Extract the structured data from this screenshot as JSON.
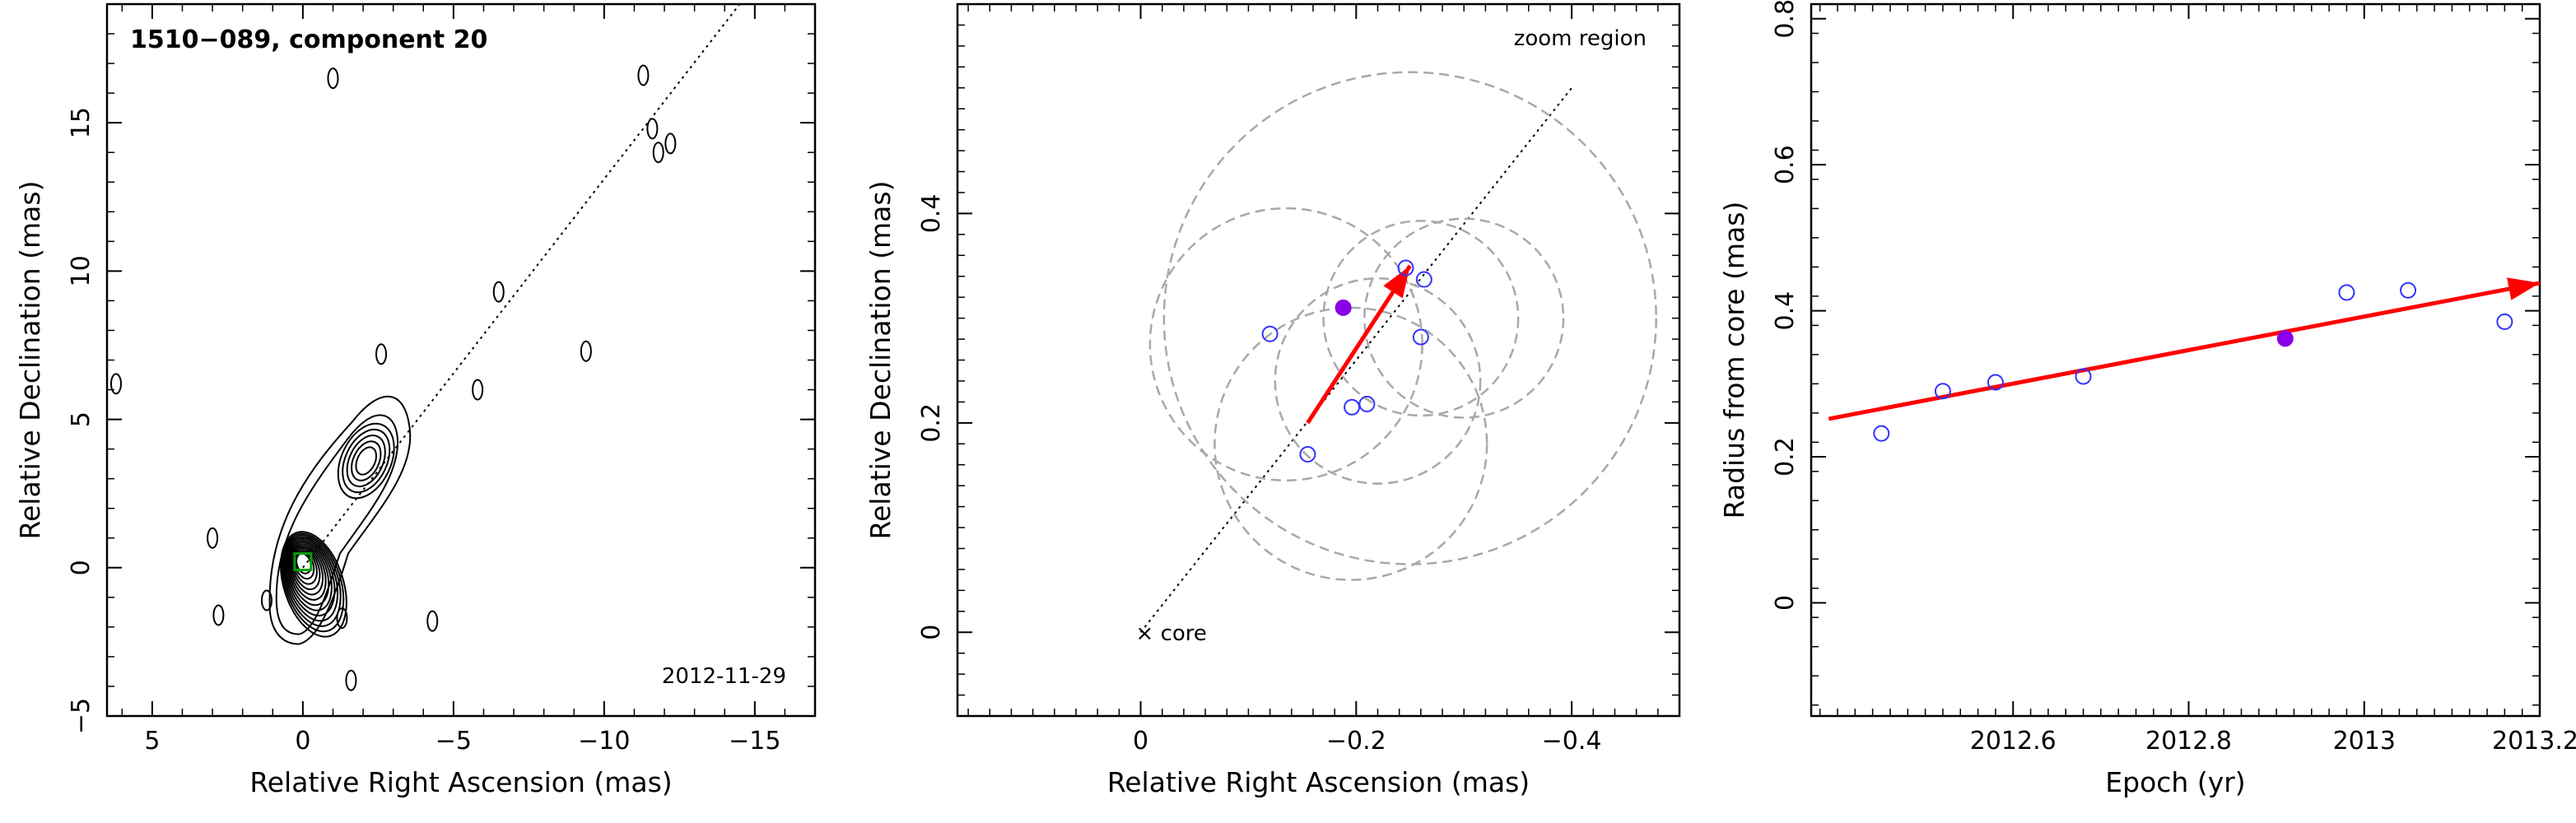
{
  "colors": {
    "contour": "#000000",
    "arrow": "#ff0000",
    "open_marker": "#3333ff",
    "filled_marker": "#8a00e6",
    "circle": "#a8a8a8",
    "core_box": "#00a000"
  },
  "chart_data": [
    {
      "type": "contour",
      "title": "1510−089, component 20",
      "date": "2012-11-29",
      "xlabel": "Relative Right Ascension (mas)",
      "ylabel": "Relative Declination (mas)",
      "xlim": [
        6.5,
        -17
      ],
      "ylim": [
        -5,
        19
      ],
      "xticks": [
        5,
        0,
        -5,
        -10,
        -15
      ],
      "xtick_labels": [
        "5",
        "0",
        "−5",
        "−10",
        "−15"
      ],
      "yticks": [
        -5,
        0,
        5,
        10,
        15
      ],
      "yticks_labels": [
        "−5",
        "0",
        "5",
        "10",
        "15"
      ],
      "direction_line": {
        "from": [
          0,
          0
        ],
        "to": [
          -14.5,
          19
        ]
      },
      "jet_core": {
        "ra": 0,
        "dec": 0.2,
        "peak_layers": 13
      },
      "jet_knot": {
        "ra": -2.1,
        "dec": 3.6,
        "layers": 5
      },
      "isolated_blobs": [
        {
          "ra": -11.3,
          "dec": 16.6
        },
        {
          "ra": -11.6,
          "dec": 14.8
        },
        {
          "ra": -12.2,
          "dec": 14.3
        },
        {
          "ra": -11.8,
          "dec": 14.0
        },
        {
          "ra": -6.5,
          "dec": 9.3
        },
        {
          "ra": -9.4,
          "dec": 7.3
        },
        {
          "ra": -2.6,
          "dec": 7.2
        },
        {
          "ra": 3.0,
          "dec": 1.0
        },
        {
          "ra": 2.8,
          "dec": -1.6
        },
        {
          "ra": 1.2,
          "dec": -1.1
        },
        {
          "ra": -1.3,
          "dec": -1.7
        },
        {
          "ra": -4.3,
          "dec": -1.8
        },
        {
          "ra": -1.6,
          "dec": -3.8
        },
        {
          "ra": 6.2,
          "dec": 6.2
        },
        {
          "ra": -1.0,
          "dec": 16.5
        },
        {
          "ra": -5.8,
          "dec": 6.0
        }
      ]
    },
    {
      "type": "scatter",
      "annotation": "zoom region",
      "core_label": "× core",
      "xlabel": "Relative Right Ascension (mas)",
      "ylabel": "Relative Declination (mas)",
      "xlim": [
        0.17,
        -0.5
      ],
      "ylim": [
        -0.08,
        0.6
      ],
      "xticks": [
        0,
        -0.2,
        -0.4
      ],
      "xtick_labels": [
        "0",
        "−0.2",
        "−0.4"
      ],
      "yticks": [
        0,
        0.2,
        0.4
      ],
      "ytick_labels": [
        "0",
        "0.2",
        "0.4"
      ],
      "direction_line": {
        "from": [
          0,
          0
        ],
        "to": [
          -0.4,
          0.52
        ]
      },
      "open_points": [
        {
          "x": -0.12,
          "y": 0.285
        },
        {
          "x": -0.155,
          "y": 0.17
        },
        {
          "x": -0.196,
          "y": 0.215
        },
        {
          "x": -0.21,
          "y": 0.218
        },
        {
          "x": -0.246,
          "y": 0.348
        },
        {
          "x": -0.263,
          "y": 0.337
        },
        {
          "x": -0.26,
          "y": 0.282
        }
      ],
      "filled_point": {
        "x": -0.188,
        "y": 0.31
      },
      "arrow": {
        "from": [
          -0.155,
          0.2
        ],
        "to": [
          -0.25,
          0.35
        ]
      },
      "circles": [
        {
          "cx": -0.135,
          "cy": 0.275,
          "r": 0.13
        },
        {
          "cx": -0.195,
          "cy": 0.18,
          "r": 0.13
        },
        {
          "cx": -0.22,
          "cy": 0.24,
          "r": 0.098
        },
        {
          "cx": -0.26,
          "cy": 0.3,
          "r": 0.093
        },
        {
          "cx": -0.3,
          "cy": 0.3,
          "r": 0.095
        },
        {
          "cx": -0.25,
          "cy": 0.3,
          "r": 0.235
        }
      ]
    },
    {
      "type": "scatter",
      "xlabel": "Epoch (yr)",
      "ylabel": "Radius from core (mas)",
      "xlim": [
        2012.37,
        2013.2
      ],
      "ylim": [
        -0.155,
        0.82
      ],
      "xticks": [
        2012.6,
        2012.8,
        2013.0,
        2013.2
      ],
      "xtick_labels": [
        "2012.6",
        "2012.8",
        "2013",
        "2013.2"
      ],
      "yticks": [
        0,
        0.2,
        0.4,
        0.6,
        0.8
      ],
      "ytick_labels": [
        "0",
        "0.2",
        "0.4",
        "0.6",
        "0.8"
      ],
      "open_points": [
        {
          "x": 2012.45,
          "y": 0.232
        },
        {
          "x": 2012.52,
          "y": 0.29
        },
        {
          "x": 2012.58,
          "y": 0.302
        },
        {
          "x": 2012.68,
          "y": 0.31
        },
        {
          "x": 2012.98,
          "y": 0.425
        },
        {
          "x": 2013.05,
          "y": 0.428
        },
        {
          "x": 2013.16,
          "y": 0.385
        }
      ],
      "filled_point": {
        "x": 2012.91,
        "y": 0.362
      },
      "arrow": {
        "from": [
          2012.39,
          0.252
        ],
        "to": [
          2013.2,
          0.438
        ]
      }
    }
  ]
}
